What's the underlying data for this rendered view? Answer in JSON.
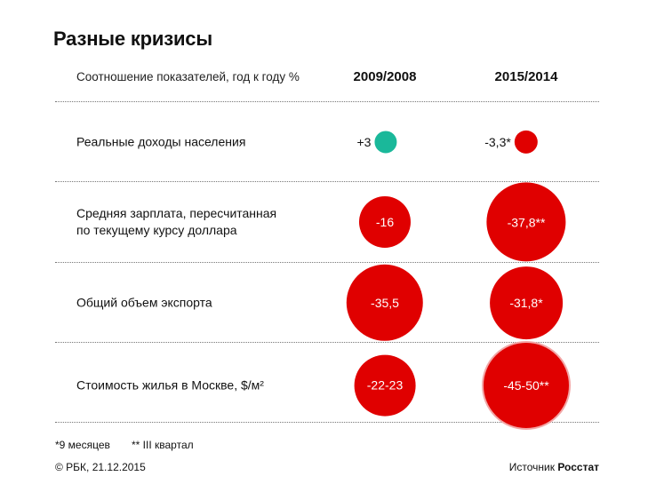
{
  "title": "Разные кризисы",
  "subtitle": "Соотношение показателей, год к году %",
  "columns": [
    "2009/2008",
    "2015/2014"
  ],
  "colors": {
    "positive": "#1ab89a",
    "negative": "#e00000",
    "ring": "#f2a6a6",
    "divider": "#777777"
  },
  "chart_data": {
    "type": "bubble-table",
    "categories": [
      "Реальные доходы населения",
      "Средняя зарплата, пересчитанная по текущему курсу доллара",
      "Общий объем экспорта",
      "Стоимость жилья в Москве, $/м²"
    ],
    "series": [
      {
        "name": "2009/2008",
        "values": [
          3,
          -16,
          -35.5,
          -22.5
        ],
        "labels": [
          "+3",
          "-16",
          "-35,5",
          "-22-23"
        ]
      },
      {
        "name": "2015/2014",
        "values": [
          -3.3,
          -37.8,
          -31.8,
          -47.5
        ],
        "labels": [
          "-3,3*",
          "-37,8**",
          "-31,8*",
          "-45-50**"
        ]
      }
    ]
  },
  "rows": [
    {
      "label_lines": [
        "Реальные доходы населения"
      ]
    },
    {
      "label_lines": [
        "Средняя зарплата, пересчитанная",
        "по текущему курсу доллара"
      ]
    },
    {
      "label_lines": [
        "Общий объем экспорта"
      ]
    },
    {
      "label_lines": [
        "Стоимость жилья в Москве, $/м²"
      ]
    }
  ],
  "footnotes": [
    "*9 месяцев",
    "** III квартал"
  ],
  "footer": {
    "credit": "© РБК, 21.12.2015",
    "source_prefix": "Источник",
    "source_name": "Росстат"
  }
}
